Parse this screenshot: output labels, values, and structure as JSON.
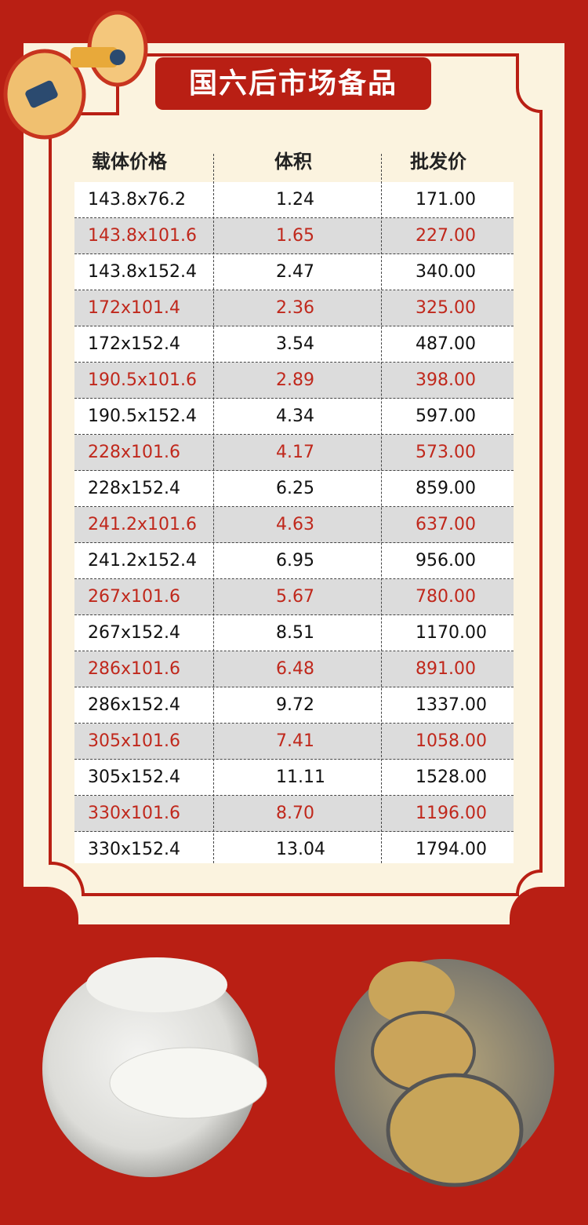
{
  "title": "国六后市场备品",
  "table": {
    "headers": [
      "载体价格",
      "体积",
      "批发价"
    ],
    "rows": [
      [
        "143.8x76.2",
        "1.24",
        "171.00"
      ],
      [
        "143.8x101.6",
        "1.65",
        "227.00"
      ],
      [
        "143.8x152.4",
        "2.47",
        "340.00"
      ],
      [
        "172x101.4",
        "2.36",
        "325.00"
      ],
      [
        "172x152.4",
        "3.54",
        "487.00"
      ],
      [
        "190.5x101.6",
        "2.89",
        "398.00"
      ],
      [
        "190.5x152.4",
        "4.34",
        "597.00"
      ],
      [
        "228x101.6",
        "4.17",
        "573.00"
      ],
      [
        "228x152.4",
        "6.25",
        "859.00"
      ],
      [
        "241.2x101.6",
        "4.63",
        "637.00"
      ],
      [
        "241.2x152.4",
        "6.95",
        "956.00"
      ],
      [
        "267x101.6",
        "5.67",
        "780.00"
      ],
      [
        "267x152.4",
        "8.51",
        "1170.00"
      ],
      [
        "286x101.6",
        "6.48",
        "891.00"
      ],
      [
        "286x152.4",
        "9.72",
        "1337.00"
      ],
      [
        "305x101.6",
        "7.41",
        "1058.00"
      ],
      [
        "305x152.4",
        "11.11",
        "1528.00"
      ],
      [
        "330x101.6",
        "8.70",
        "1196.00"
      ],
      [
        "330x152.4",
        "13.04",
        "1794.00"
      ]
    ]
  }
}
